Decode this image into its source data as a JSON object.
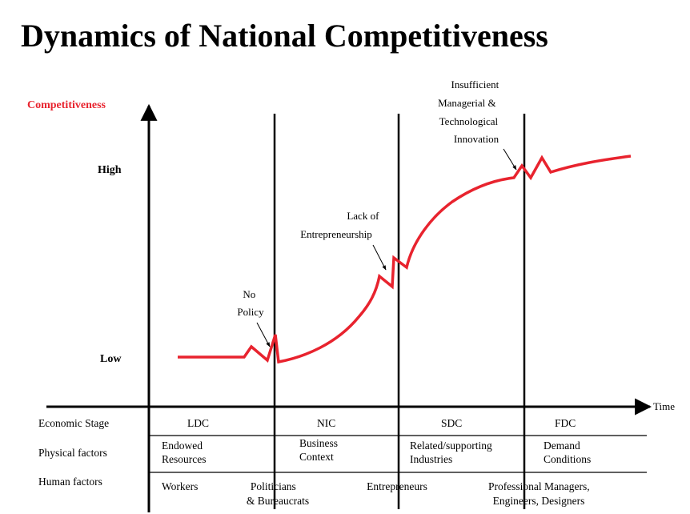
{
  "title": "Dynamics of National Competitiveness",
  "y_axis_label": "Competitiveness",
  "x_axis_label": "Time",
  "levels": {
    "high": "High",
    "low": "Low"
  },
  "annotations": {
    "no_policy": [
      "No",
      "Policy"
    ],
    "lack_of_entrepreneurship": [
      "Lack of",
      "Entrepreneurship"
    ],
    "insufficient_innovation": [
      "Insufficient",
      "Managerial &",
      "Technological",
      "Innovation"
    ]
  },
  "table": {
    "row_labels": [
      "Economic Stage",
      "Physical factors",
      "Human factors"
    ],
    "stages": [
      "LDC",
      "NIC",
      "SDC",
      "FDC"
    ],
    "physical_factors": [
      [
        "Endowed",
        "Resources"
      ],
      [
        "Business",
        "Context"
      ],
      [
        "Related/supporting",
        "Industries"
      ],
      [
        "Demand",
        "Conditions"
      ]
    ],
    "human_factors": [
      [
        "Workers"
      ],
      [
        "Politicians",
        "& Bureaucrats"
      ],
      [
        "Entrepreneurs"
      ],
      [
        "Professional Managers,",
        "Engineers, Designers"
      ]
    ]
  },
  "colors": {
    "curve": "#e8232e",
    "axis_label": "#e8232e",
    "lines": "#000000"
  }
}
